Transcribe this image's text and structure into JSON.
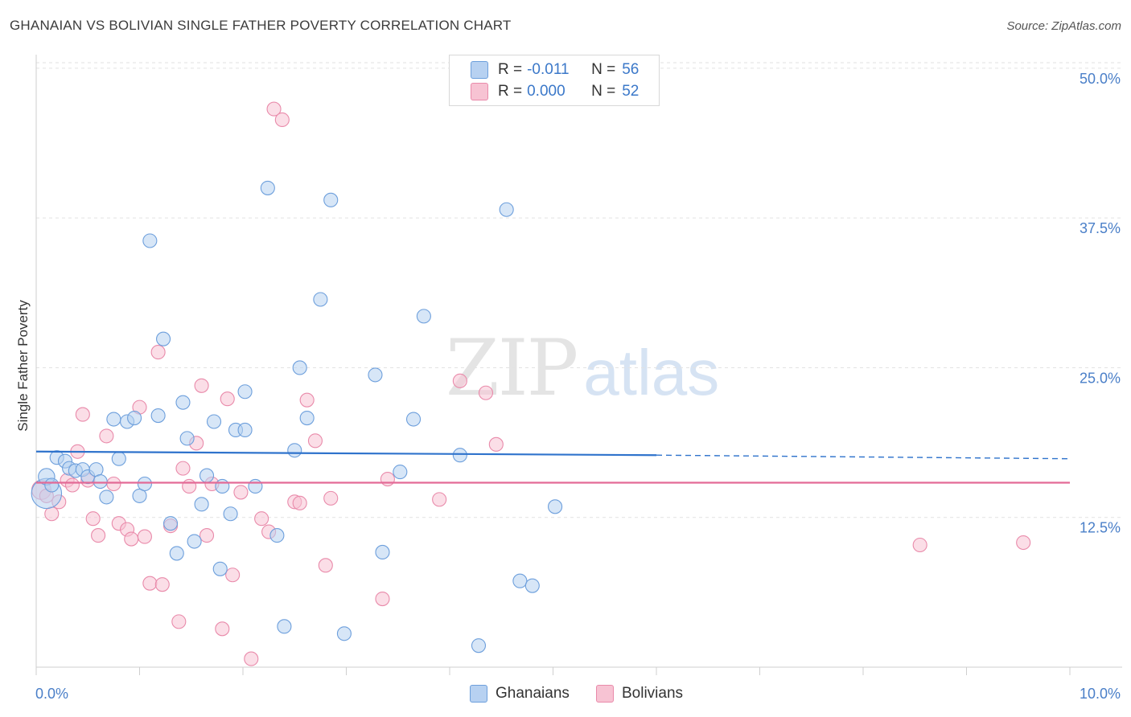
{
  "header": {
    "title": "GHANAIAN VS BOLIVIAN SINGLE FATHER POVERTY CORRELATION CHART",
    "source": "Source: ZipAtlas.com"
  },
  "watermark": {
    "zip": "ZIP",
    "atlas": "atlas"
  },
  "legend": {
    "rows": [
      {
        "r_label": "R =",
        "r_value": "-0.011",
        "n_label": "N =",
        "n_value": "56"
      },
      {
        "r_label": "R =",
        "r_value": "0.000",
        "n_label": "N =",
        "n_value": "52"
      }
    ]
  },
  "bottom_legend": {
    "items": [
      "Ghanaians",
      "Bolivians"
    ]
  },
  "colors": {
    "blue_fill": "#b7d1f1",
    "blue_stroke": "#6d9fdc",
    "blue_line": "#2f73cc",
    "pink_fill": "#f7c3d3",
    "pink_stroke": "#e98aaa",
    "pink_line": "#e36a96"
  },
  "chart_data": {
    "type": "scatter",
    "title": "GHANAIAN VS BOLIVIAN SINGLE FATHER POVERTY CORRELATION CHART",
    "xlabel": "",
    "ylabel": "Single Father Poverty",
    "xlim": [
      0,
      10
    ],
    "ylim": [
      0,
      51
    ],
    "x_tick_labels": [
      "0.0%",
      "10.0%"
    ],
    "y_ticks": [
      12.5,
      25.0,
      37.5,
      50.0
    ],
    "y_tick_labels": [
      "12.5%",
      "25.0%",
      "37.5%",
      "50.0%"
    ],
    "grid": true,
    "legend_position": "top-center",
    "series": [
      {
        "name": "Ghanaians",
        "r": -0.011,
        "n": 56,
        "trend": {
          "x_start": 0.0,
          "y_start": 18.0,
          "x_solid_end": 6.0,
          "y_solid_end": 17.7,
          "x_end": 10.0,
          "y_end": 17.4
        },
        "points": [
          [
            0.1,
            14.5,
            2.2
          ],
          [
            0.1,
            15.9,
            1.2
          ],
          [
            0.15,
            15.2,
            1
          ],
          [
            0.2,
            17.5,
            1
          ],
          [
            0.28,
            17.2,
            1
          ],
          [
            0.32,
            16.6,
            1
          ],
          [
            0.38,
            16.4,
            1
          ],
          [
            0.45,
            16.5,
            1
          ],
          [
            0.5,
            15.9,
            1
          ],
          [
            0.58,
            16.5,
            1
          ],
          [
            0.62,
            15.5,
            1
          ],
          [
            0.68,
            14.2,
            1
          ],
          [
            0.75,
            20.7,
            1
          ],
          [
            0.8,
            17.4,
            1
          ],
          [
            0.88,
            20.5,
            1
          ],
          [
            0.95,
            20.8,
            1
          ],
          [
            1.0,
            14.3,
            1
          ],
          [
            1.05,
            15.3,
            1
          ],
          [
            1.1,
            35.6,
            1
          ],
          [
            1.18,
            21.0,
            1
          ],
          [
            1.23,
            27.4,
            1
          ],
          [
            1.3,
            12.0,
            1
          ],
          [
            1.36,
            9.5,
            1
          ],
          [
            1.42,
            22.1,
            1
          ],
          [
            1.46,
            19.1,
            1
          ],
          [
            1.53,
            10.5,
            1
          ],
          [
            1.6,
            13.6,
            1
          ],
          [
            1.65,
            16.0,
            1
          ],
          [
            1.72,
            20.5,
            1
          ],
          [
            1.78,
            8.2,
            1
          ],
          [
            1.8,
            15.1,
            1
          ],
          [
            1.88,
            12.8,
            1
          ],
          [
            1.93,
            19.8,
            1
          ],
          [
            2.02,
            23.0,
            1
          ],
          [
            2.02,
            19.8,
            1
          ],
          [
            2.12,
            15.1,
            1
          ],
          [
            2.24,
            40.0,
            1
          ],
          [
            2.33,
            11.0,
            1
          ],
          [
            2.4,
            3.4,
            1
          ],
          [
            2.5,
            18.1,
            1
          ],
          [
            2.55,
            25.0,
            1
          ],
          [
            2.62,
            20.8,
            1
          ],
          [
            2.75,
            30.7,
            1
          ],
          [
            2.85,
            39.0,
            1
          ],
          [
            2.98,
            2.8,
            1
          ],
          [
            3.28,
            24.4,
            1
          ],
          [
            3.35,
            9.6,
            1
          ],
          [
            3.52,
            16.3,
            1
          ],
          [
            3.65,
            20.7,
            1
          ],
          [
            3.75,
            29.3,
            1
          ],
          [
            4.1,
            17.7,
            1
          ],
          [
            4.28,
            1.8,
            1
          ],
          [
            4.55,
            38.2,
            1
          ],
          [
            4.68,
            7.2,
            1
          ],
          [
            4.8,
            6.8,
            1
          ],
          [
            5.02,
            13.4,
            1
          ]
        ]
      },
      {
        "name": "Bolivians",
        "r": 0.0,
        "n": 52,
        "trend": {
          "x_start": 0.0,
          "y_start": 15.4,
          "x_end": 10.0,
          "y_end": 15.4
        },
        "points": [
          [
            0.05,
            14.8,
            1.4
          ],
          [
            0.1,
            14.3,
            1
          ],
          [
            0.15,
            12.8,
            1
          ],
          [
            0.22,
            13.8,
            1
          ],
          [
            0.3,
            15.6,
            1
          ],
          [
            0.35,
            15.2,
            1
          ],
          [
            0.4,
            18.0,
            1
          ],
          [
            0.45,
            21.1,
            1
          ],
          [
            0.5,
            15.6,
            1
          ],
          [
            0.55,
            12.4,
            1
          ],
          [
            0.6,
            11.0,
            1
          ],
          [
            0.68,
            19.3,
            1
          ],
          [
            0.75,
            15.3,
            1
          ],
          [
            0.8,
            12.0,
            1
          ],
          [
            0.88,
            11.5,
            1
          ],
          [
            0.92,
            10.7,
            1
          ],
          [
            1.0,
            21.7,
            1
          ],
          [
            1.05,
            10.9,
            1
          ],
          [
            1.1,
            7.0,
            1
          ],
          [
            1.18,
            26.3,
            1
          ],
          [
            1.22,
            6.9,
            1
          ],
          [
            1.3,
            11.8,
            1
          ],
          [
            1.38,
            3.8,
            1
          ],
          [
            1.42,
            16.6,
            1
          ],
          [
            1.48,
            15.1,
            1
          ],
          [
            1.55,
            18.7,
            1
          ],
          [
            1.6,
            23.5,
            1
          ],
          [
            1.65,
            11.0,
            1
          ],
          [
            1.7,
            15.3,
            1
          ],
          [
            1.8,
            3.2,
            1
          ],
          [
            1.85,
            22.4,
            1
          ],
          [
            1.9,
            7.7,
            1
          ],
          [
            1.98,
            14.6,
            1
          ],
          [
            2.08,
            0.7,
            1
          ],
          [
            2.18,
            12.4,
            1
          ],
          [
            2.25,
            11.3,
            1
          ],
          [
            2.3,
            46.6,
            1
          ],
          [
            2.38,
            45.7,
            1
          ],
          [
            2.5,
            13.8,
            1
          ],
          [
            2.55,
            13.7,
            1
          ],
          [
            2.62,
            22.3,
            1
          ],
          [
            2.7,
            18.9,
            1
          ],
          [
            2.8,
            8.5,
            1
          ],
          [
            2.85,
            14.1,
            1
          ],
          [
            3.35,
            5.7,
            1
          ],
          [
            3.4,
            15.7,
            1
          ],
          [
            3.9,
            14.0,
            1
          ],
          [
            4.1,
            23.9,
            1
          ],
          [
            4.35,
            22.9,
            1
          ],
          [
            4.45,
            18.6,
            1
          ],
          [
            8.55,
            10.2,
            1
          ],
          [
            9.55,
            10.4,
            1
          ]
        ]
      }
    ]
  }
}
